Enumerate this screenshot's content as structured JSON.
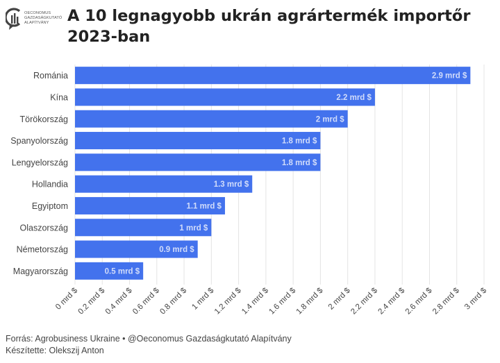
{
  "header": {
    "logo": {
      "icon": "oeconomus-logo-icon",
      "lines": [
        "OECONOMUS",
        "GAZDASÁGKUTATÓ",
        "ALAPÍTVÁNY"
      ]
    },
    "title_lines": [
      "A 10 legnagyobb ukrán agrártermék importőr",
      "2023-ban"
    ]
  },
  "chart_data": {
    "type": "bar",
    "orientation": "horizontal",
    "title": "A 10 legnagyobb ukrán agrártermék importőr 2023-ban",
    "categories": [
      "Románia",
      "Kína",
      "Törökország",
      "Spanyolország",
      "Lengyelország",
      "Hollandia",
      "Egyiptom",
      "Olaszország",
      "Németország",
      "Magyarország"
    ],
    "values": [
      2.9,
      2.2,
      2,
      1.8,
      1.8,
      1.3,
      1.1,
      1,
      0.9,
      0.5
    ],
    "value_labels": [
      "2.9 mrd $",
      "2.2 mrd $",
      "2 mrd $",
      "1.8 mrd $",
      "1.8 mrd $",
      "1.3 mrd $",
      "1.1 mrd $",
      "1 mrd $",
      "0.9 mrd $",
      "0.5 mrd $"
    ],
    "xlim": [
      0,
      3
    ],
    "xticks": [
      0,
      0.2,
      0.4,
      0.6,
      0.8,
      1,
      1.2,
      1.4,
      1.6,
      1.8,
      2,
      2.2,
      2.4,
      2.6,
      2.8,
      3
    ],
    "xtick_labels": [
      "0 mrd $",
      "0.2 mrd $",
      "0.4 mrd $",
      "0.6 mrd $",
      "0.8 mrd $",
      "1 mrd $",
      "1.2 mrd $",
      "1.4 mrd $",
      "1.6 mrd $",
      "1.8 mrd $",
      "2 mrd $",
      "2.2 mrd $",
      "2.4 mrd $",
      "2.6 mrd $",
      "2.8 mrd $",
      "3 mrd $"
    ],
    "xlabel": "",
    "ylabel": "",
    "grid": "vertical",
    "bar_color": "#4372ed"
  },
  "footer": {
    "source": "Forrás: Agrobusiness Ukraine • @Oeconomus Gazdaságkutató Alapítvány",
    "author": "Készítette: Olekszij Anton"
  }
}
